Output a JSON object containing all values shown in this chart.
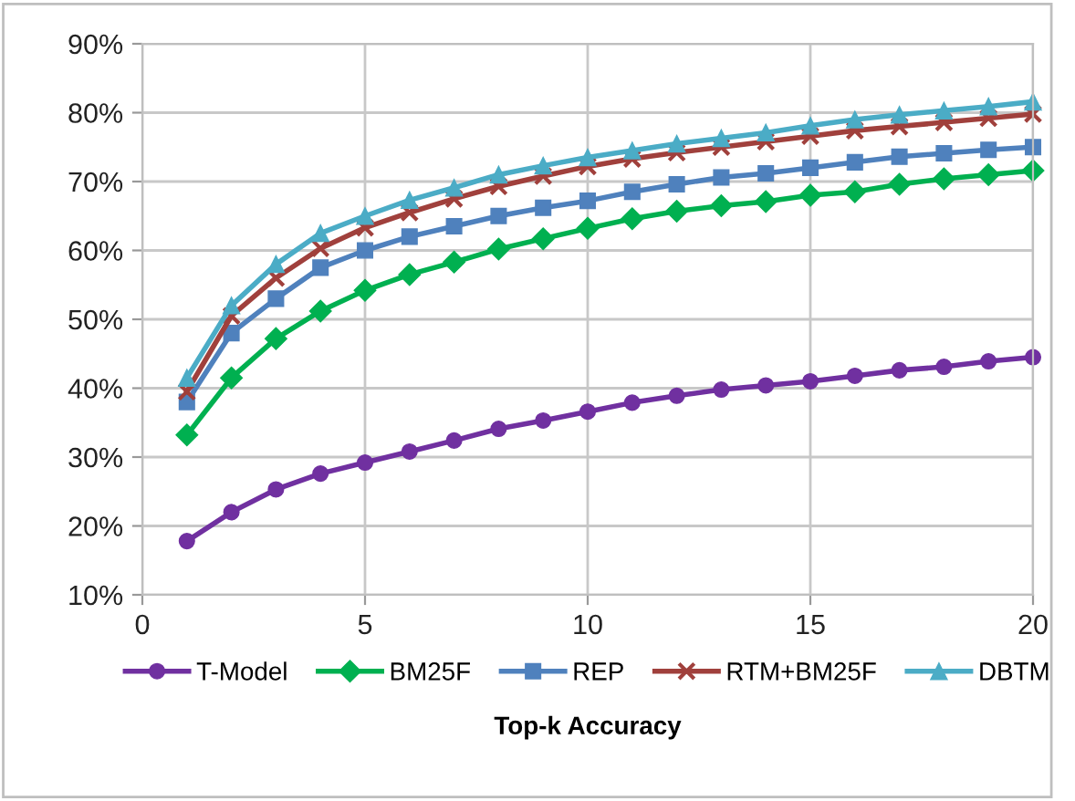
{
  "chart_data": {
    "type": "line",
    "xlabel": "Top-k Accuracy",
    "x": [
      1,
      2,
      3,
      4,
      5,
      6,
      7,
      8,
      9,
      10,
      11,
      12,
      13,
      14,
      15,
      16,
      17,
      18,
      19,
      20
    ],
    "series": [
      {
        "name": "T-Model",
        "color": "#7030a0",
        "marker": "circle",
        "values": [
          17.8,
          22,
          25.3,
          27.6,
          29.2,
          30.8,
          32.4,
          34.1,
          35.3,
          36.6,
          37.9,
          38.9,
          39.8,
          40.4,
          41,
          41.8,
          42.6,
          43.1,
          43.9,
          44.5
        ]
      },
      {
        "name": "BM25F",
        "color": "#00b050",
        "marker": "diamond",
        "values": [
          33.2,
          41.5,
          47.2,
          51.2,
          54.2,
          56.5,
          58.3,
          60.2,
          61.7,
          63.2,
          64.6,
          65.7,
          66.5,
          67.1,
          68,
          68.5,
          69.6,
          70.4,
          71,
          71.6
        ]
      },
      {
        "name": "REP",
        "color": "#4f81bd",
        "marker": "square",
        "values": [
          38,
          48,
          53,
          57.5,
          60,
          62,
          63.5,
          65,
          66.2,
          67.2,
          68.5,
          69.6,
          70.6,
          71.2,
          72,
          72.8,
          73.6,
          74.1,
          74.6,
          75
        ]
      },
      {
        "name": "RTM+BM25F",
        "color": "#a0403c",
        "marker": "cross",
        "values": [
          39.5,
          50.5,
          56,
          60.3,
          63.3,
          65.5,
          67.5,
          69.3,
          70.8,
          72.2,
          73.3,
          74.2,
          75,
          75.8,
          76.6,
          77.4,
          78,
          78.6,
          79.2,
          79.8
        ]
      },
      {
        "name": "DBTM",
        "color": "#4bacc6",
        "marker": "triangle",
        "values": [
          41.5,
          52,
          58,
          62.5,
          65,
          67.3,
          69.1,
          71,
          72.3,
          73.5,
          74.5,
          75.5,
          76.3,
          77.1,
          78.1,
          79,
          79.7,
          80.3,
          80.9,
          81.6
        ]
      }
    ],
    "xlim": [
      0,
      20
    ],
    "xticks": [
      0,
      5,
      10,
      15,
      20
    ],
    "ylim": [
      10,
      90
    ],
    "yticks": [
      {
        "value": 10,
        "label": "10%"
      },
      {
        "value": 20,
        "label": "20%"
      },
      {
        "value": 30,
        "label": "30%"
      },
      {
        "value": 40,
        "label": "40%"
      },
      {
        "value": 50,
        "label": "50%"
      },
      {
        "value": 60,
        "label": "60%"
      },
      {
        "value": 70,
        "label": "70%"
      },
      {
        "value": 80,
        "label": "80%"
      },
      {
        "value": 90,
        "label": "90%"
      }
    ],
    "grid": true,
    "legend": "bottom",
    "line_style": "solid"
  }
}
